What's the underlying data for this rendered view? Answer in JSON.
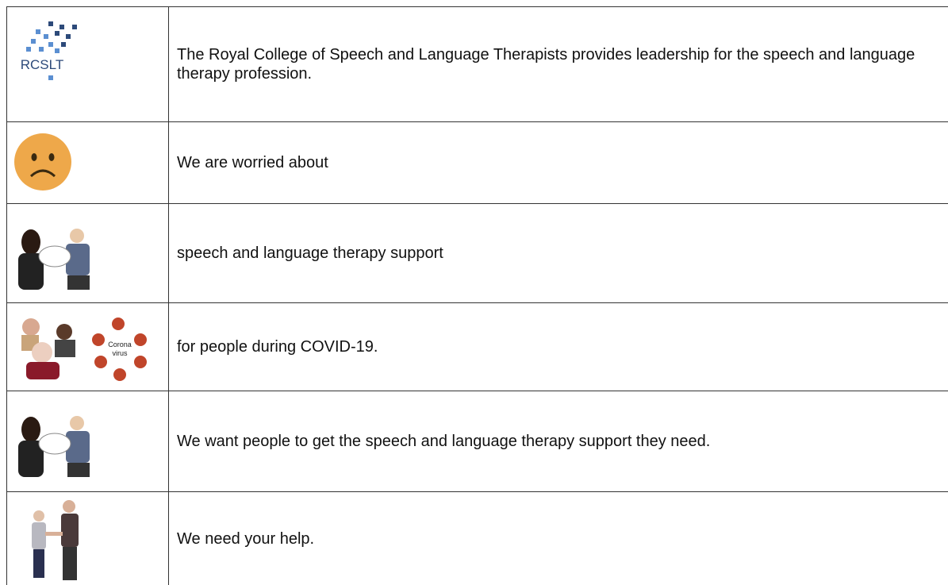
{
  "table": {
    "rows": [
      {
        "text": "The Royal College of Speech and Language Therapists provides leadership for the speech and language therapy profession.",
        "image_label": "RCSLT"
      },
      {
        "text": "We are worried about"
      },
      {
        "text": "speech and language therapy support"
      },
      {
        "text": "for people during COVID-19.",
        "image_label": [
          "Corona",
          "virus"
        ]
      },
      {
        "text": "We want people to get the speech and language therapy support they need."
      },
      {
        "text": "We need your help."
      }
    ]
  }
}
